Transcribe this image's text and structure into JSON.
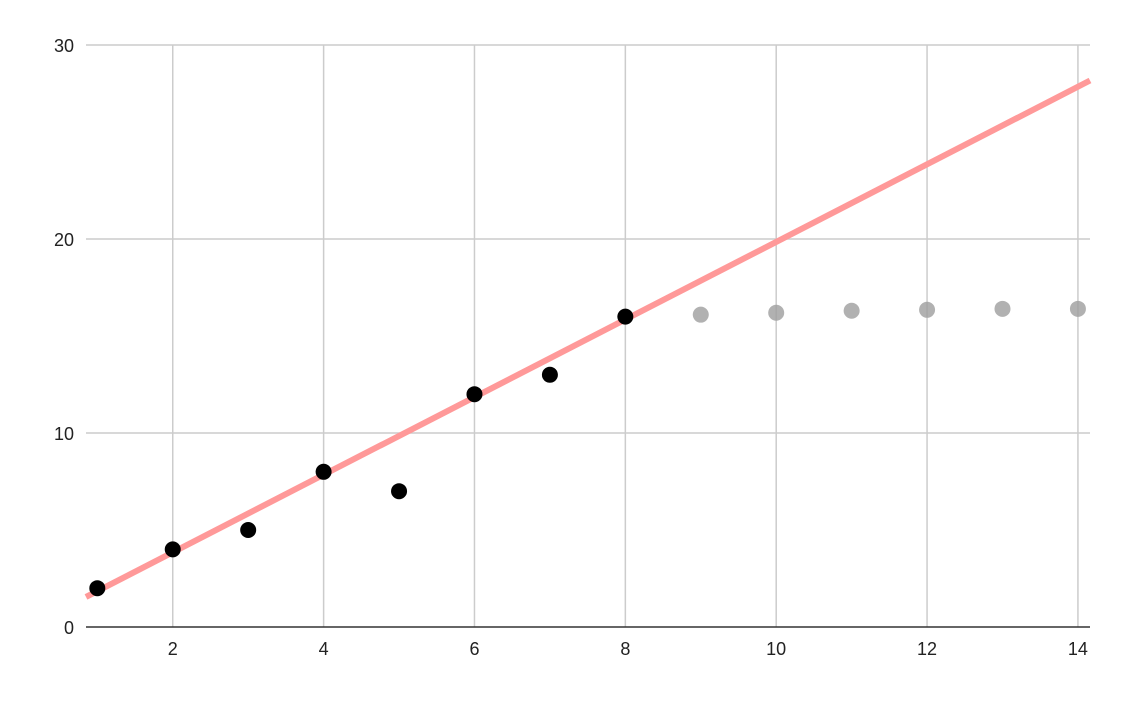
{
  "chart_data": {
    "type": "scatter",
    "title": "",
    "xlabel": "",
    "ylabel": "",
    "xlim": [
      0.85,
      14.16
    ],
    "ylim": [
      0,
      30
    ],
    "x_ticks": [
      "2",
      "4",
      "6",
      "8",
      "10",
      "12",
      "14"
    ],
    "x_tick_values": [
      2,
      4,
      6,
      8,
      10,
      12,
      14
    ],
    "x_minor_grid": [
      1,
      3,
      5,
      7,
      9,
      11,
      13
    ],
    "y_ticks": [
      "0",
      "10",
      "20",
      "30"
    ],
    "y_tick_values": [
      0,
      10,
      20,
      30
    ],
    "grid": true,
    "legend": "none",
    "series": [
      {
        "x": [
          1,
          2,
          3,
          4,
          5,
          6,
          7,
          8
        ],
        "y": [
          2,
          4,
          5,
          8,
          7,
          12,
          13,
          16
        ],
        "color": "#000000",
        "style": "points"
      },
      {
        "x": [
          9,
          10,
          11,
          12,
          13,
          14
        ],
        "y": [
          16.1,
          16.2,
          16.3,
          16.35,
          16.4,
          16.4
        ],
        "color": "#9e9e9e",
        "style": "points"
      }
    ],
    "trendline": {
      "type": "linear",
      "slope": 2.0,
      "intercept": -0.15,
      "color": "#ff9999"
    }
  }
}
